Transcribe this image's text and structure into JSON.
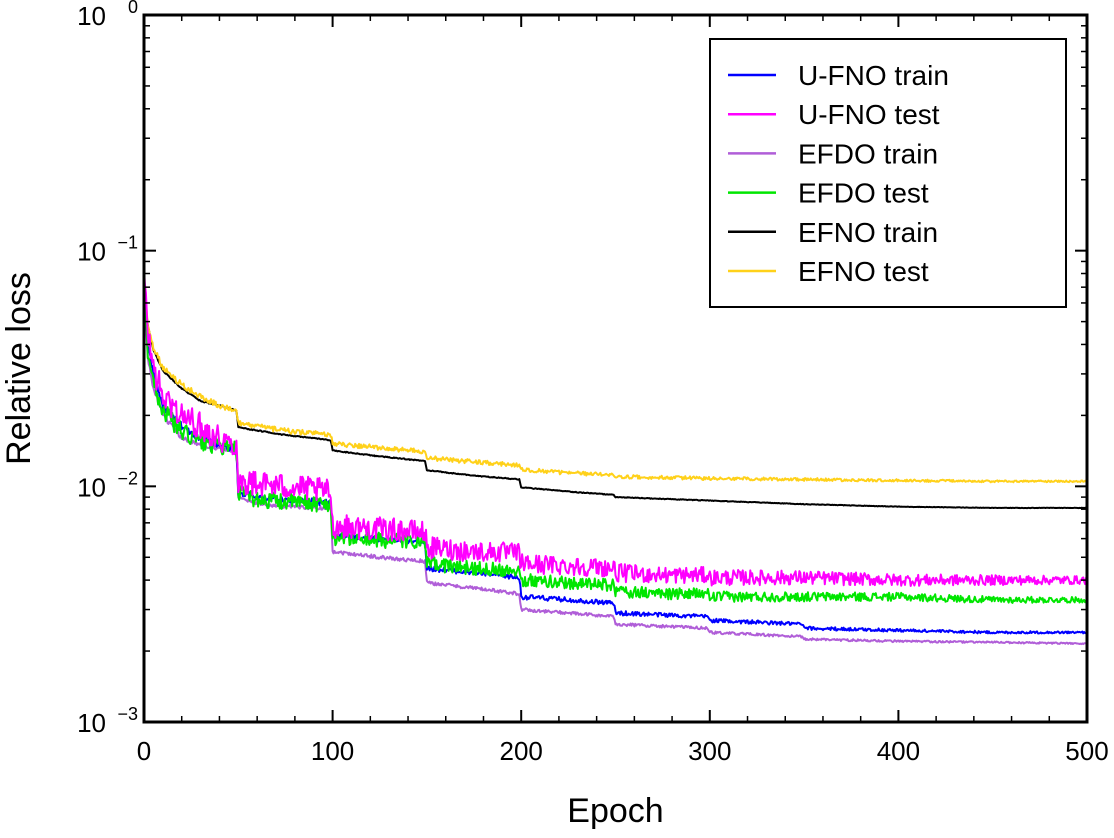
{
  "chart_data": {
    "type": "line",
    "xlabel": "Epoch",
    "ylabel": "Relative loss",
    "xlim": [
      0,
      500
    ],
    "ylim": [
      0.001,
      1
    ],
    "yscale": "log",
    "xticks": [
      0,
      100,
      200,
      300,
      400,
      500
    ],
    "xtick_labels": [
      "0",
      "100",
      "200",
      "300",
      "400",
      "500"
    ],
    "yticks": [
      0.001,
      0.01,
      0.1,
      1
    ],
    "ytick_labels": [
      {
        "base": "10",
        "exp": "−3"
      },
      {
        "base": "10",
        "exp": "−2"
      },
      {
        "base": "10",
        "exp": "−1"
      },
      {
        "base": "10",
        "exp": "0"
      }
    ],
    "grid": false,
    "legend_position": "top-right",
    "series": [
      {
        "name": "U-FNO train",
        "color": "#0000ff",
        "noise": 0.03,
        "x": [
          0,
          2,
          5,
          10,
          20,
          30,
          40,
          49,
          50,
          60,
          75,
          99,
          100,
          125,
          149,
          150,
          175,
          199,
          200,
          225,
          249,
          250,
          275,
          299,
          300,
          325,
          349,
          350,
          400,
          450,
          500
        ],
        "y": [
          0.08,
          0.04,
          0.03,
          0.022,
          0.018,
          0.016,
          0.015,
          0.014,
          0.0095,
          0.009,
          0.0088,
          0.0085,
          0.0062,
          0.006,
          0.0058,
          0.0045,
          0.0043,
          0.0041,
          0.0034,
          0.0033,
          0.0032,
          0.0029,
          0.00285,
          0.0028,
          0.0027,
          0.00265,
          0.0026,
          0.0025,
          0.00245,
          0.0024,
          0.0024
        ]
      },
      {
        "name": "U-FNO test",
        "color": "#ff00ff",
        "noise": 0.12,
        "x": [
          0,
          2,
          5,
          10,
          20,
          30,
          40,
          49,
          50,
          60,
          75,
          99,
          100,
          125,
          149,
          150,
          175,
          199,
          200,
          225,
          249,
          250,
          275,
          299,
          300,
          350,
          400,
          450,
          500
        ],
        "y": [
          0.08,
          0.045,
          0.032,
          0.024,
          0.02,
          0.018,
          0.016,
          0.015,
          0.0105,
          0.0103,
          0.01,
          0.0095,
          0.0068,
          0.0066,
          0.0064,
          0.0055,
          0.0053,
          0.0052,
          0.0047,
          0.0046,
          0.0045,
          0.0043,
          0.0042,
          0.0042,
          0.0041,
          0.0041,
          0.004,
          0.004,
          0.004
        ]
      },
      {
        "name": "EFDO train",
        "color": "#b05ed8",
        "noise": 0.02,
        "x": [
          0,
          2,
          5,
          10,
          20,
          30,
          40,
          49,
          50,
          60,
          75,
          99,
          100,
          125,
          149,
          150,
          175,
          199,
          200,
          225,
          249,
          250,
          275,
          299,
          300,
          325,
          349,
          350,
          400,
          450,
          500
        ],
        "y": [
          0.07,
          0.035,
          0.026,
          0.02,
          0.016,
          0.015,
          0.0145,
          0.014,
          0.009,
          0.0085,
          0.0082,
          0.0081,
          0.0053,
          0.005,
          0.0048,
          0.0039,
          0.0037,
          0.0035,
          0.003,
          0.0029,
          0.0028,
          0.0026,
          0.00255,
          0.0025,
          0.0024,
          0.00235,
          0.0023,
          0.00225,
          0.0022,
          0.00218,
          0.00215
        ]
      },
      {
        "name": "EFDO test",
        "color": "#00e600",
        "noise": 0.08,
        "x": [
          0,
          2,
          5,
          10,
          20,
          30,
          40,
          49,
          50,
          60,
          75,
          99,
          100,
          125,
          149,
          150,
          175,
          199,
          200,
          225,
          249,
          250,
          275,
          299,
          300,
          350,
          400,
          450,
          500
        ],
        "y": [
          0.07,
          0.038,
          0.028,
          0.021,
          0.017,
          0.0155,
          0.0148,
          0.0143,
          0.0093,
          0.0088,
          0.0086,
          0.0084,
          0.0061,
          0.0059,
          0.0058,
          0.0047,
          0.0045,
          0.0044,
          0.004,
          0.0039,
          0.0038,
          0.0036,
          0.0035,
          0.0035,
          0.0034,
          0.0034,
          0.0034,
          0.0033,
          0.0033
        ]
      },
      {
        "name": "EFNO train",
        "color": "#000000",
        "noise": 0.005,
        "x": [
          0,
          2,
          5,
          10,
          20,
          30,
          40,
          49,
          50,
          75,
          99,
          100,
          125,
          149,
          150,
          175,
          199,
          200,
          225,
          249,
          250,
          300,
          350,
          400,
          450,
          500
        ],
        "y": [
          0.07,
          0.048,
          0.038,
          0.031,
          0.026,
          0.023,
          0.022,
          0.021,
          0.0178,
          0.0165,
          0.0157,
          0.0142,
          0.0134,
          0.0128,
          0.0117,
          0.0111,
          0.0107,
          0.0099,
          0.0095,
          0.0092,
          0.009,
          0.0087,
          0.0084,
          0.0082,
          0.0081,
          0.0081
        ]
      },
      {
        "name": "EFNO test",
        "color": "#ffd11a",
        "noise": 0.025,
        "x": [
          0,
          2,
          5,
          10,
          20,
          30,
          40,
          49,
          50,
          75,
          99,
          100,
          125,
          149,
          150,
          175,
          199,
          200,
          225,
          249,
          250,
          300,
          350,
          400,
          450,
          500
        ],
        "y": [
          0.07,
          0.049,
          0.039,
          0.032,
          0.027,
          0.024,
          0.022,
          0.021,
          0.0185,
          0.0172,
          0.0165,
          0.0152,
          0.0146,
          0.014,
          0.0132,
          0.0127,
          0.0123,
          0.0118,
          0.0114,
          0.0112,
          0.011,
          0.0108,
          0.0107,
          0.0106,
          0.0105,
          0.0105
        ]
      }
    ]
  }
}
